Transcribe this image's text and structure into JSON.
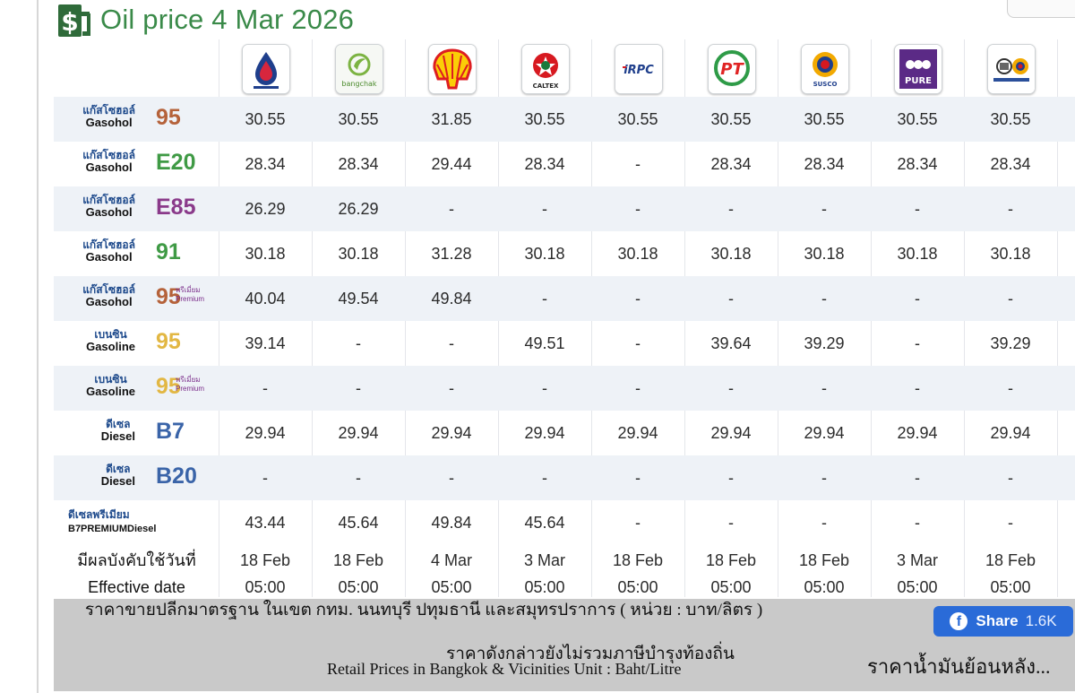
{
  "title": "Oil price 4 Mar 2026",
  "brands": [
    {
      "name": "PTT Station"
    },
    {
      "name": "bangchak"
    },
    {
      "name": "Shell"
    },
    {
      "name": "CALTEX"
    },
    {
      "name": "IRPC"
    },
    {
      "name": "PT"
    },
    {
      "name": "SUSCO"
    },
    {
      "name": "PURE"
    },
    {
      "name": "Susco Dealers"
    }
  ],
  "fuels": [
    {
      "thai": "แก๊สโซฮอล์",
      "eng": "Gasohol",
      "code": "95",
      "color": "#b5623a",
      "premium": false,
      "prices": [
        "30.55",
        "30.55",
        "31.85",
        "30.55",
        "30.55",
        "30.55",
        "30.55",
        "30.55",
        "30.55"
      ]
    },
    {
      "thai": "แก๊สโซฮอล์",
      "eng": "Gasohol",
      "code": "E20",
      "color": "#3f9a45",
      "premium": false,
      "prices": [
        "28.34",
        "28.34",
        "29.44",
        "28.34",
        "-",
        "28.34",
        "28.34",
        "28.34",
        "28.34"
      ]
    },
    {
      "thai": "แก๊สโซฮอล์",
      "eng": "Gasohol",
      "code": "E85",
      "color": "#8a3a8a",
      "premium": false,
      "prices": [
        "26.29",
        "26.29",
        "-",
        "-",
        "-",
        "-",
        "-",
        "-",
        "-"
      ]
    },
    {
      "thai": "แก๊สโซฮอล์",
      "eng": "Gasohol",
      "code": "91",
      "color": "#3f9a45",
      "premium": false,
      "prices": [
        "30.18",
        "30.18",
        "31.28",
        "30.18",
        "30.18",
        "30.18",
        "30.18",
        "30.18",
        "30.18"
      ]
    },
    {
      "thai": "แก๊สโซฮอล์",
      "eng": "Gasohol",
      "code": "95",
      "color": "#b5623a",
      "premium": true,
      "prices": [
        "40.04",
        "49.54",
        "49.84",
        "-",
        "-",
        "-",
        "-",
        "-",
        "-"
      ]
    },
    {
      "thai": "เบนซิน",
      "eng": "Gasoline",
      "code": "95",
      "color": "#e2b743",
      "premium": false,
      "prices": [
        "39.14",
        "-",
        "-",
        "49.51",
        "-",
        "39.64",
        "39.29",
        "-",
        "39.29"
      ]
    },
    {
      "thai": "เบนซิน",
      "eng": "Gasoline",
      "code": "95",
      "color": "#e2b743",
      "premium": true,
      "prices": [
        "-",
        "-",
        "-",
        "-",
        "-",
        "-",
        "-",
        "-",
        "-"
      ]
    },
    {
      "thai": "ดีเซล",
      "eng": "Diesel",
      "code": "B7",
      "color": "#3a64a8",
      "premium": false,
      "prices": [
        "29.94",
        "29.94",
        "29.94",
        "29.94",
        "29.94",
        "29.94",
        "29.94",
        "29.94",
        "29.94"
      ]
    },
    {
      "thai": "ดีเซล",
      "eng": "Diesel",
      "code": "B20",
      "color": "#3a64a8",
      "premium": false,
      "prices": [
        "-",
        "-",
        "-",
        "-",
        "-",
        "-",
        "-",
        "-",
        "-"
      ]
    },
    {
      "thai": "ดีเซลพรีเมียม",
      "eng": "B7PREMIUMDiesel",
      "code": "",
      "color": "#1e4a8c",
      "premium": false,
      "prices": [
        "43.44",
        "45.64",
        "49.84",
        "45.64",
        "-",
        "-",
        "-",
        "-",
        "-"
      ]
    }
  ],
  "premium_badge": {
    "thai": "พรีเมี่ยม",
    "eng": "Premium"
  },
  "effective": {
    "thai_label": "มีผลบังคับใช้วันที่",
    "eng_label": "Effective date",
    "dates": [
      "18 Feb",
      "18 Feb",
      "4 Mar",
      "3 Mar",
      "18 Feb",
      "18 Feb",
      "18 Feb",
      "3 Mar",
      "18 Feb"
    ],
    "times": [
      "05:00",
      "05:00",
      "05:00",
      "05:00",
      "05:00",
      "05:00",
      "05:00",
      "05:00",
      "05:00"
    ]
  },
  "footer": {
    "note1": "ราคาขายปลีกมาตรฐาน ในเขต กทม. นนทบุรี ปทุมธานี และสมุทรปราการ ( หน่วย : บาท/ลิตร )",
    "note2": "ราคาดังกล่าวยังไม่รวมภาษีบำรุงท้องถิ่น",
    "note3": "Retail Prices in Bangkok & Vicinities Unit : Baht/Litre",
    "share_label": "Share",
    "share_count": "1.6K",
    "history_link": "ราคาน้ำมันย้อนหลัง..."
  }
}
